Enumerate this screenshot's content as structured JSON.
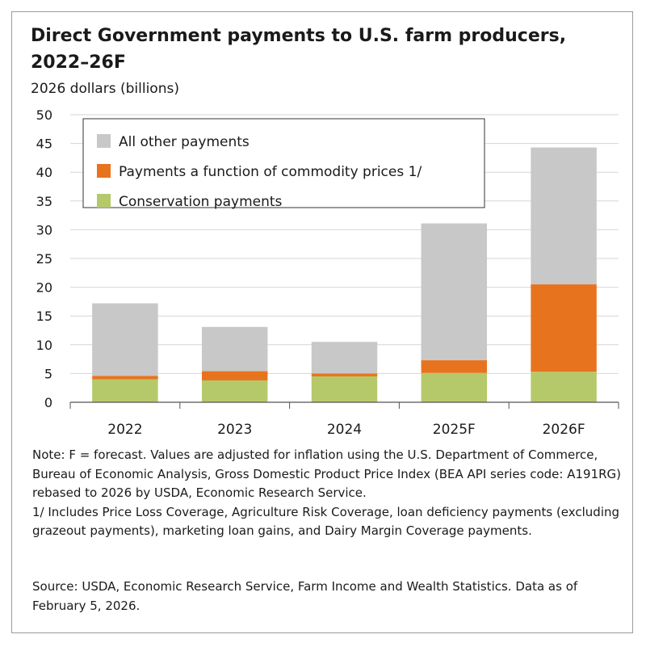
{
  "chart_data": {
    "type": "bar",
    "stacked": true,
    "title": "Direct Government payments to U.S. farm producers, 2022–26F",
    "ylabel": "2026 dollars (billions)",
    "xlabel": "",
    "ylim": [
      0,
      50
    ],
    "yticks": [
      "0",
      "5",
      "10",
      "15",
      "20",
      "25",
      "30",
      "35",
      "40",
      "45",
      "50"
    ],
    "grid": true,
    "legend_position": "top-left",
    "categories": [
      "2022",
      "2023",
      "2024",
      "2025F",
      "2026F"
    ],
    "series": [
      {
        "name": "Conservation payments",
        "color": "#b5c96a",
        "values": [
          4.0,
          3.8,
          4.5,
          5.1,
          5.3
        ]
      },
      {
        "name": "Payments a function of commodity prices 1/",
        "color": "#e8731f",
        "values": [
          0.6,
          1.6,
          0.5,
          2.2,
          15.2
        ]
      },
      {
        "name": "All other payments",
        "color": "#c8c8c8",
        "values": [
          12.6,
          7.7,
          5.5,
          23.8,
          23.8
        ]
      }
    ],
    "legend_order": [
      2,
      1,
      0
    ]
  },
  "notes": {
    "note": "Note: F = forecast. Values are adjusted for inflation using the U.S. Department of Commerce, Bureau of Economic Analysis, Gross Domestic Product Price Index (BEA API series code: A191RG) rebased to 2026 by USDA, Economic Research Service.",
    "footnote": "1/ Includes Price Loss Coverage, Agriculture Risk Coverage, loan deficiency payments (excluding grazeout payments), marketing loan gains, and Dairy Margin Coverage payments.",
    "source": "Source: USDA, Economic Research Service, Farm Income and Wealth Statistics. Data as of February 5, 2026."
  }
}
